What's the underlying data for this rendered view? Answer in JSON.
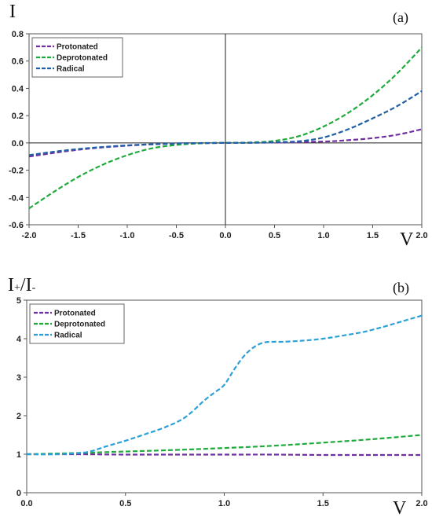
{
  "chart_data": [
    {
      "type": "line",
      "panel": "(a)",
      "ylabel": "I",
      "xlabel": "V",
      "xlim": [
        -2.0,
        2.0
      ],
      "ylim": [
        -0.6,
        0.8
      ],
      "x_ticks": [
        -2.0,
        -1.5,
        -1.0,
        -0.5,
        0.0,
        0.5,
        1.0,
        1.5,
        2.0
      ],
      "y_ticks": [
        -0.6,
        -0.4,
        -0.2,
        0.0,
        0.2,
        0.4,
        0.6,
        0.8
      ],
      "x_tick_labels": [
        "-2.0",
        "-1.5",
        "-1.0",
        "-0.5",
        "0.0",
        "0.5",
        "1.0",
        "1.5",
        "2.0"
      ],
      "y_tick_labels": [
        "-0.6",
        "-0.4",
        "-0.2",
        "0.0",
        "0.2",
        "0.4",
        "0.6",
        "0.8"
      ],
      "zero_lines": true,
      "grid": false,
      "legend_position": "top-left",
      "series": [
        {
          "name": "Protonated",
          "color": "#7030a0",
          "x": [
            -2.0,
            -1.5,
            -1.0,
            -0.5,
            0.0,
            0.5,
            1.0,
            1.25,
            1.5,
            1.75,
            2.0
          ],
          "y": [
            -0.1,
            -0.05,
            -0.02,
            -0.005,
            0.0,
            0.003,
            0.01,
            0.02,
            0.035,
            0.06,
            0.1
          ]
        },
        {
          "name": "Deprotonated",
          "color": "#1faa3c",
          "x": [
            -2.0,
            -1.75,
            -1.5,
            -1.25,
            -1.0,
            -0.75,
            -0.5,
            -0.25,
            0.0,
            0.25,
            0.5,
            0.75,
            1.0,
            1.25,
            1.5,
            1.75,
            2.0
          ],
          "y": [
            -0.48,
            -0.36,
            -0.25,
            -0.16,
            -0.09,
            -0.04,
            -0.015,
            -0.003,
            0.0,
            0.003,
            0.015,
            0.05,
            0.12,
            0.22,
            0.35,
            0.51,
            0.7
          ]
        },
        {
          "name": "Radical",
          "color": "#1f5fa8",
          "x": [
            -2.0,
            -1.75,
            -1.5,
            -1.25,
            -1.0,
            -0.75,
            -0.5,
            -0.25,
            0.0,
            0.25,
            0.5,
            0.75,
            1.0,
            1.25,
            1.5,
            1.75,
            2.0
          ],
          "y": [
            -0.09,
            -0.065,
            -0.045,
            -0.03,
            -0.018,
            -0.01,
            -0.004,
            -0.001,
            0.0,
            0.001,
            0.005,
            0.012,
            0.04,
            0.1,
            0.18,
            0.27,
            0.38
          ]
        }
      ]
    },
    {
      "type": "line",
      "panel": "(b)",
      "ylabel": "I+/I-",
      "xlabel": "V",
      "xlim": [
        0.0,
        2.0
      ],
      "ylim": [
        0,
        5
      ],
      "x_ticks": [
        0.0,
        0.5,
        1.0,
        1.5,
        2.0
      ],
      "y_ticks": [
        0,
        1,
        2,
        3,
        4,
        5
      ],
      "x_tick_labels": [
        "0.0",
        "0.5",
        "1.0",
        "1.5",
        "2.0"
      ],
      "y_tick_labels": [
        "0",
        "1",
        "2",
        "3",
        "4",
        "5"
      ],
      "grid": false,
      "legend_position": "top-left",
      "series": [
        {
          "name": "Protonated",
          "color": "#7030a0",
          "x": [
            0.0,
            0.25,
            0.5,
            0.75,
            1.0,
            1.25,
            1.5,
            1.75,
            2.0
          ],
          "y": [
            1.0,
            1.0,
            0.99,
            0.99,
            0.99,
            0.99,
            0.98,
            0.98,
            0.98
          ]
        },
        {
          "name": "Deprotonated",
          "color": "#1faa3c",
          "x": [
            0.0,
            0.25,
            0.5,
            0.75,
            1.0,
            1.25,
            1.5,
            1.75,
            2.0
          ],
          "y": [
            1.0,
            1.03,
            1.07,
            1.11,
            1.16,
            1.22,
            1.3,
            1.39,
            1.5
          ]
        },
        {
          "name": "Radical",
          "color": "#2ba0d8",
          "x": [
            0.0,
            0.15,
            0.3,
            0.4,
            0.5,
            0.6,
            0.7,
            0.8,
            0.9,
            0.95,
            1.0,
            1.05,
            1.1,
            1.15,
            1.2,
            1.25,
            1.3,
            1.4,
            1.5,
            1.6,
            1.7,
            1.8,
            1.9,
            2.0
          ],
          "y": [
            1.0,
            1.0,
            1.05,
            1.2,
            1.35,
            1.52,
            1.7,
            1.95,
            2.4,
            2.6,
            2.8,
            3.2,
            3.55,
            3.78,
            3.9,
            3.92,
            3.92,
            3.95,
            4.0,
            4.08,
            4.17,
            4.3,
            4.45,
            4.6
          ]
        }
      ]
    }
  ]
}
